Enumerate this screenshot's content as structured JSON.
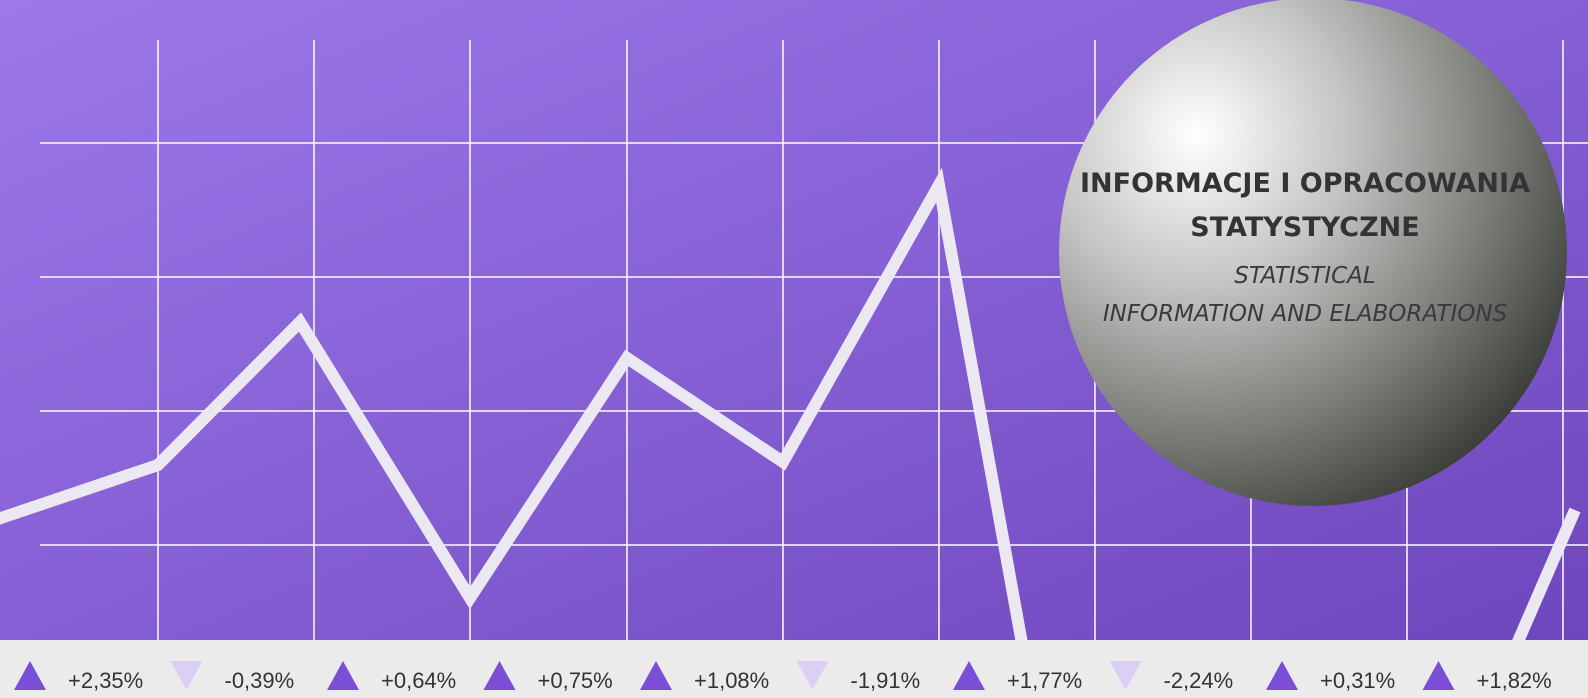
{
  "header": {
    "title_line1": "INFORMACJE I OPRACOWANIA",
    "title_line2": "STATYSTYCZNE",
    "subtitle_line1": "STATISTICAL",
    "subtitle_line2": "INFORMATION AND ELABORATIONS"
  },
  "ticker": [
    {
      "text": "+2,35%",
      "direction": "up"
    },
    {
      "text": "-0,39%",
      "direction": "down"
    },
    {
      "text": "+0,64%",
      "direction": "up"
    },
    {
      "text": "+0,75%",
      "direction": "up"
    },
    {
      "text": "+1,08%",
      "direction": "up"
    },
    {
      "text": "-1,91%",
      "direction": "down"
    },
    {
      "text": "+1,77%",
      "direction": "up"
    },
    {
      "text": "-2,24%",
      "direction": "down"
    },
    {
      "text": "+0,31%",
      "direction": "up"
    },
    {
      "text": "+1,82%",
      "direction": "up"
    }
  ]
}
